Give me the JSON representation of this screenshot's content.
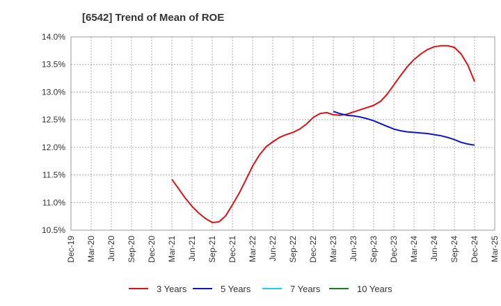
{
  "chart_data": {
    "type": "line",
    "title": "[6542]  Trend of Mean of ROE",
    "xlabel": "",
    "ylabel": "",
    "x_ticks": [
      "Dec-19",
      "Mar-20",
      "Jun-20",
      "Sep-20",
      "Dec-20",
      "Mar-21",
      "Jun-21",
      "Sep-21",
      "Dec-21",
      "Mar-22",
      "Jun-22",
      "Sep-22",
      "Dec-22",
      "Mar-23",
      "Jun-23",
      "Sep-23",
      "Dec-23",
      "Mar-24",
      "Jun-24",
      "Sep-24",
      "Dec-24",
      "Mar-25"
    ],
    "y_ticks": [
      "10.5%",
      "11.0%",
      "11.5%",
      "12.0%",
      "12.5%",
      "13.0%",
      "13.5%",
      "14.0%"
    ],
    "ylim": [
      10.5,
      14.0
    ],
    "grid": true,
    "legend_position": "bottom",
    "series": [
      {
        "name": "3 Years",
        "color": "#dd1111",
        "x": [
          "2021-03",
          "2021-04",
          "2021-05",
          "2021-06",
          "2021-07",
          "2021-08",
          "2021-09",
          "2021-10",
          "2021-11",
          "2021-12",
          "2022-01",
          "2022-02",
          "2022-03",
          "2022-04",
          "2022-05",
          "2022-06",
          "2022-07",
          "2022-08",
          "2022-09",
          "2022-10",
          "2022-11",
          "2022-12",
          "2023-01",
          "2023-02",
          "2023-03",
          "2023-04",
          "2023-05",
          "2023-06",
          "2023-07",
          "2023-08",
          "2023-09",
          "2023-10",
          "2023-11",
          "2023-12",
          "2024-01",
          "2024-02",
          "2024-03",
          "2024-04",
          "2024-05",
          "2024-06",
          "2024-07",
          "2024-08",
          "2024-09",
          "2024-10",
          "2024-11",
          "2024-12"
        ],
        "values": [
          11.42,
          11.25,
          11.08,
          10.93,
          10.81,
          10.71,
          10.64,
          10.65,
          10.76,
          10.96,
          11.17,
          11.41,
          11.66,
          11.86,
          12.01,
          12.1,
          12.18,
          12.23,
          12.27,
          12.33,
          12.42,
          12.54,
          12.61,
          12.63,
          12.59,
          12.58,
          12.6,
          12.64,
          12.68,
          12.72,
          12.76,
          12.83,
          12.96,
          13.13,
          13.3,
          13.46,
          13.59,
          13.69,
          13.77,
          13.82,
          13.84,
          13.84,
          13.81,
          13.69,
          13.49,
          13.19
        ]
      },
      {
        "name": "5 Years",
        "color": "#0a14c8",
        "x": [
          "2023-03",
          "2023-04",
          "2023-05",
          "2023-06",
          "2023-07",
          "2023-08",
          "2023-09",
          "2023-10",
          "2023-11",
          "2023-12",
          "2024-01",
          "2024-02",
          "2024-03",
          "2024-04",
          "2024-05",
          "2024-06",
          "2024-07",
          "2024-08",
          "2024-09",
          "2024-10",
          "2024-11",
          "2024-12"
        ],
        "values": [
          12.65,
          12.61,
          12.58,
          12.57,
          12.55,
          12.52,
          12.48,
          12.43,
          12.38,
          12.33,
          12.3,
          12.28,
          12.27,
          12.26,
          12.25,
          12.23,
          12.21,
          12.18,
          12.14,
          12.09,
          12.06,
          12.04
        ]
      },
      {
        "name": "7 Years",
        "color": "#11d4e8",
        "x": [],
        "values": []
      },
      {
        "name": "10 Years",
        "color": "#1a7d1a",
        "x": [],
        "values": []
      }
    ]
  }
}
